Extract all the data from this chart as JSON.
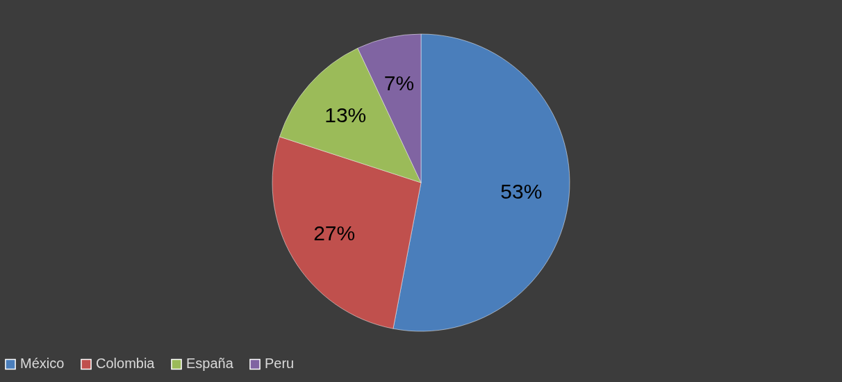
{
  "chart_data": {
    "type": "pie",
    "categories": [
      "México",
      "Colombia",
      "España",
      "Peru"
    ],
    "values": [
      53,
      27,
      13,
      7
    ],
    "colors": [
      "#4a7ebb",
      "#c0504d",
      "#9bbb59",
      "#8064a2"
    ],
    "value_labels": [
      "53%",
      "27%",
      "13%",
      "7%"
    ],
    "legend": "bottom"
  }
}
